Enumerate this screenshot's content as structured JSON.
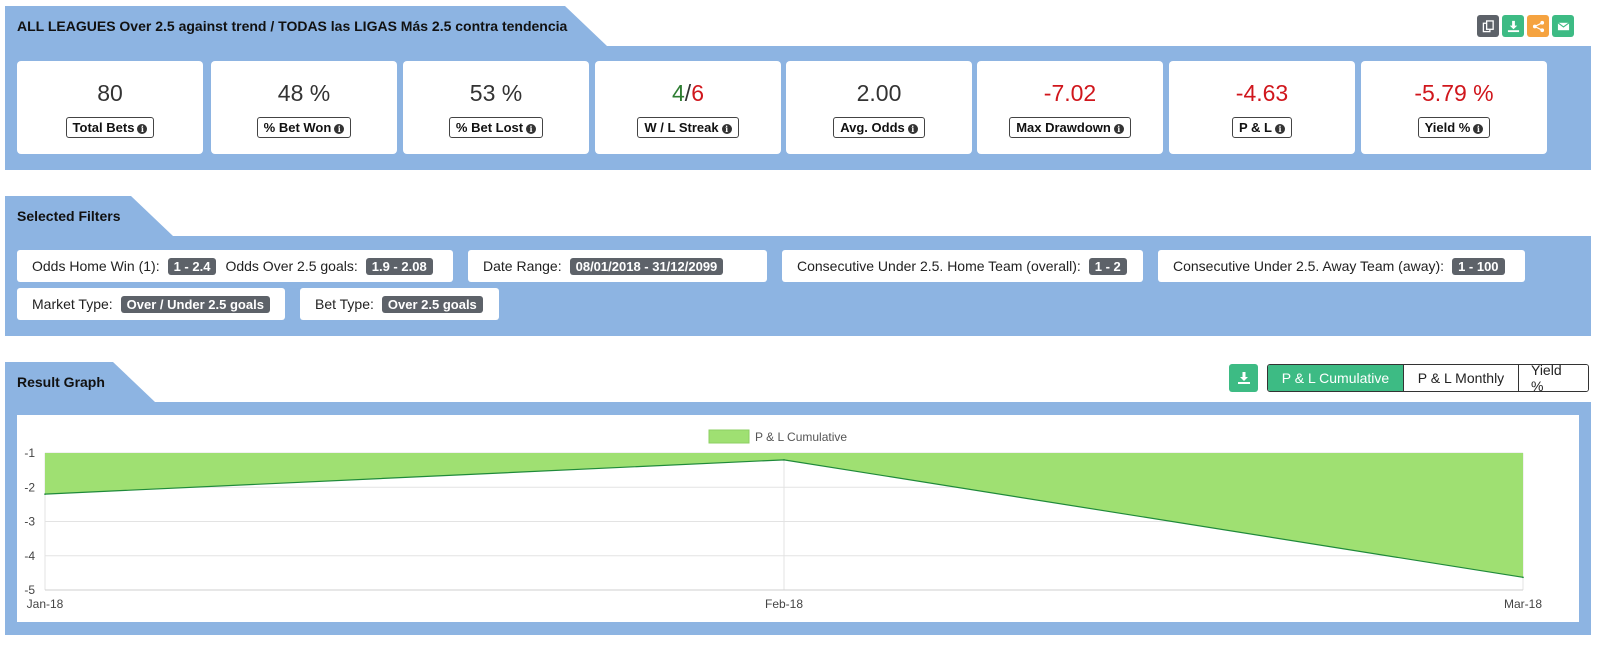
{
  "header": {
    "title": "ALL LEAGUES Over 2.5 against trend / TODAS las LIGAS Más 2.5 contra tendencia",
    "toolbar": [
      {
        "icon": "copy-icon",
        "color": "#5d6269"
      },
      {
        "icon": "download-icon",
        "color": "#3dbb84"
      },
      {
        "icon": "share-icon",
        "color": "#f5a340"
      },
      {
        "icon": "email-icon",
        "color": "#3dbb84"
      }
    ]
  },
  "stats": [
    {
      "value": "80",
      "label": "Total Bets",
      "color": "#333333"
    },
    {
      "value": "48 %",
      "label": "% Bet Won",
      "color": "#333333"
    },
    {
      "value": "53 %",
      "label": "% Bet Lost",
      "color": "#333333"
    },
    {
      "value_win": "4",
      "value_sep": "/",
      "value_loss": "6",
      "label": "W / L Streak",
      "win_color": "#2e7d32",
      "loss_color": "#d0161c"
    },
    {
      "value": "2.00",
      "label": "Avg. Odds",
      "color": "#333333"
    },
    {
      "value": "-7.02",
      "label": "Max Drawdown",
      "color": "#d0161c"
    },
    {
      "value": "-4.63",
      "label": "P & L",
      "color": "#d0161c"
    },
    {
      "value": "-5.79 %",
      "label": "Yield %",
      "color": "#d0161c"
    }
  ],
  "filters": {
    "title": "Selected Filters",
    "items": [
      {
        "label": "Odds Home Win (1):",
        "badge": "1 - 2.4",
        "label2": "Odds Over 2.5 goals:",
        "badge2": "1.9 - 2.08"
      },
      {
        "label": "Date Range:",
        "badge": "08/01/2018 - 31/12/2099"
      },
      {
        "label": "Consecutive Under 2.5. Home Team (overall):",
        "badge": "1 - 2"
      },
      {
        "label": "Consecutive Under 2.5. Away Team (away):",
        "badge": "1 - 100"
      },
      {
        "label": "Market Type:",
        "badge": "Over / Under 2.5 goals"
      },
      {
        "label": "Bet Type:",
        "badge": "Over 2.5 goals"
      }
    ]
  },
  "graph": {
    "title": "Result Graph",
    "tabs": [
      "P & L Cumulative",
      "P & L Monthly",
      "Yield %"
    ],
    "active_tab": 0
  },
  "chart_data": {
    "type": "area",
    "categories": [
      "Jan-18",
      "Feb-18",
      "Mar-18"
    ],
    "series": [
      {
        "name": "P & L Cumulative",
        "values": [
          -2.2,
          -1.2,
          -4.63
        ]
      }
    ],
    "ylim": [
      -5,
      -1
    ],
    "yticks": [
      "-1",
      "-2",
      "-3",
      "-4",
      "-5"
    ],
    "fill_color": "#9fe072",
    "line_color": "#1f8a3a",
    "legend": "top-center",
    "grid": true
  }
}
